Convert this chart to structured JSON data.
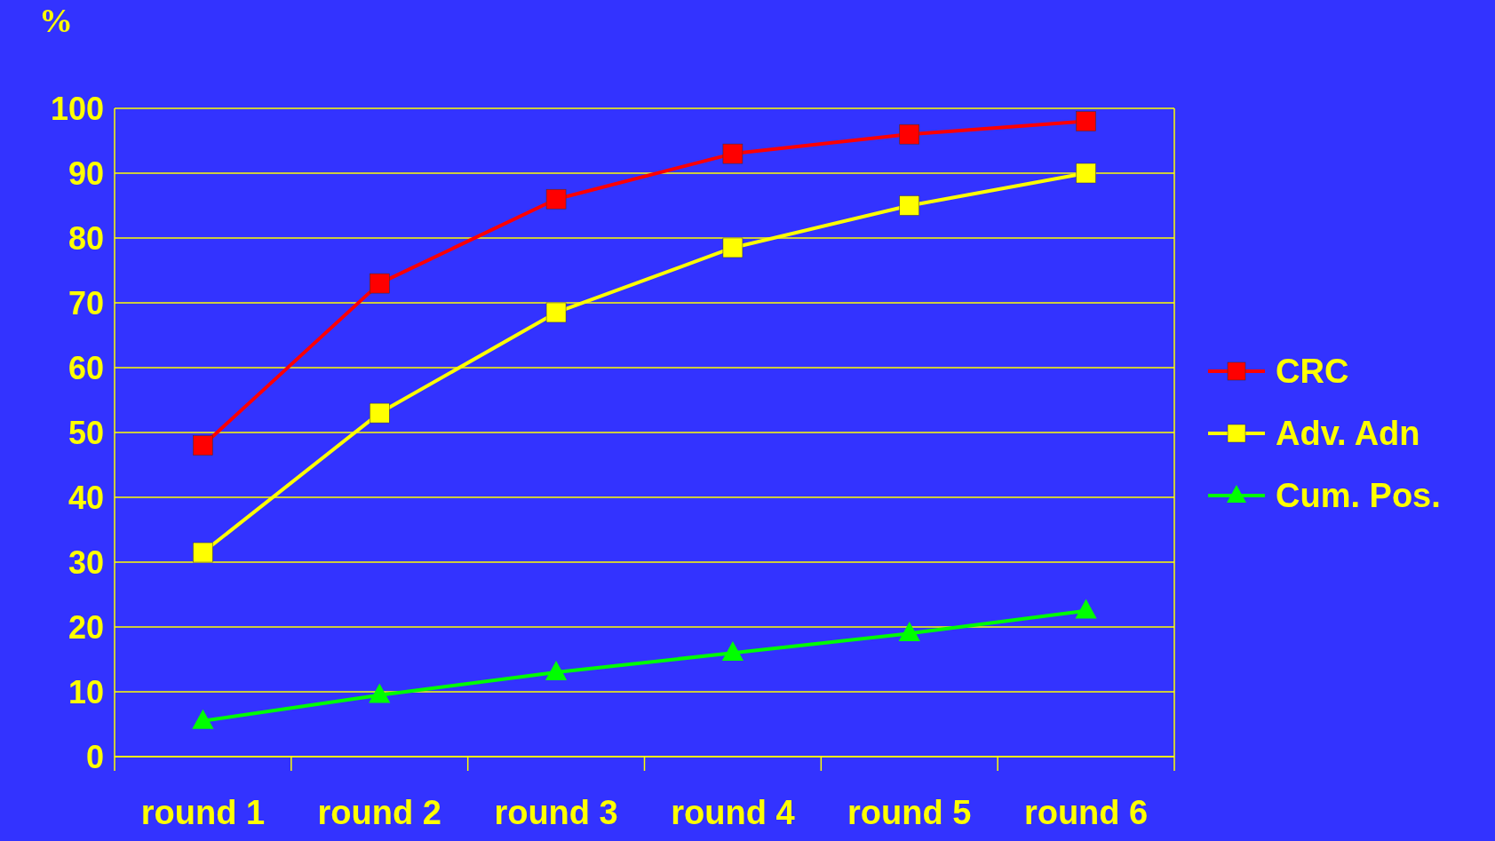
{
  "chart_data": {
    "type": "line",
    "ylabel": "%",
    "categories": [
      "round 1",
      "round 2",
      "round 3",
      "round 4",
      "round 5",
      "round 6"
    ],
    "series": [
      {
        "name": "CRC",
        "color": "#ff0000",
        "marker": "square",
        "values": [
          48,
          73,
          86,
          93,
          96,
          98
        ]
      },
      {
        "name": "Adv. Adn",
        "color": "#ffff00",
        "marker": "square",
        "values": [
          31.5,
          53,
          68.5,
          78.5,
          85,
          90
        ]
      },
      {
        "name": "Cum. Pos.",
        "color": "#00ff00",
        "marker": "triangle",
        "values": [
          5.5,
          9.5,
          13,
          16,
          19,
          22.5
        ]
      }
    ],
    "ylim": [
      0,
      100
    ],
    "yticks": [
      0,
      10,
      20,
      30,
      40,
      50,
      60,
      70,
      80,
      90,
      100
    ],
    "grid": "y",
    "legend": "right"
  }
}
